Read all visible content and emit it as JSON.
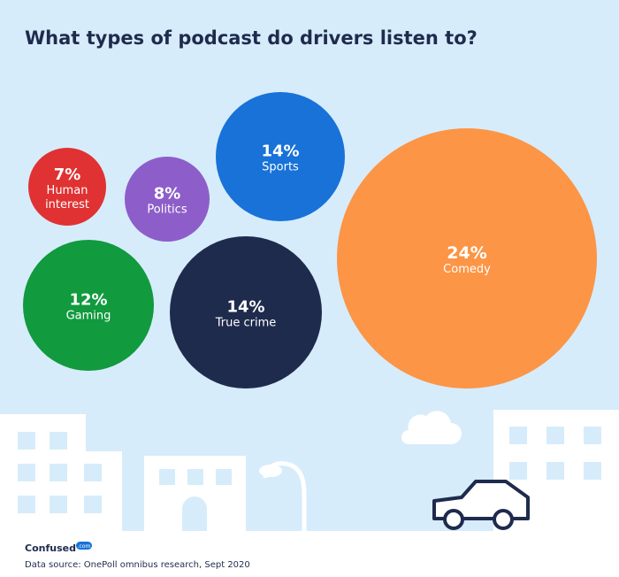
{
  "title": "What types of podcast do drivers listen to?",
  "source": "Data source: OnePoll omnibus research, Sept 2020",
  "brand": {
    "name": "Confused",
    "suffix": ".com"
  },
  "colors": {
    "background": "#d6ecfb",
    "ground": "#ffffff",
    "car": "#1f2b4d",
    "title": "#1f2b4d"
  },
  "chart_data": {
    "type": "bubble",
    "title": "What types of podcast do drivers listen to?",
    "unit": "%",
    "items": [
      {
        "label": "Human interest",
        "value": 7,
        "display": "7%",
        "lines": [
          "Human",
          "interest"
        ],
        "color": "#e03232"
      },
      {
        "label": "Politics",
        "value": 8,
        "display": "8%",
        "lines": [
          "Politics"
        ],
        "color": "#8d5ec9"
      },
      {
        "label": "Sports",
        "value": 14,
        "display": "14%",
        "lines": [
          "Sports"
        ],
        "color": "#1872d8"
      },
      {
        "label": "Gaming",
        "value": 12,
        "display": "12%",
        "lines": [
          "Gaming"
        ],
        "color": "#119a3e"
      },
      {
        "label": "True crime",
        "value": 14,
        "display": "14%",
        "lines": [
          "True crime"
        ],
        "color": "#1f2b4d"
      },
      {
        "label": "Comedy",
        "value": 24,
        "display": "24%",
        "lines": [
          "Comedy"
        ],
        "color": "#fc9545"
      }
    ]
  }
}
